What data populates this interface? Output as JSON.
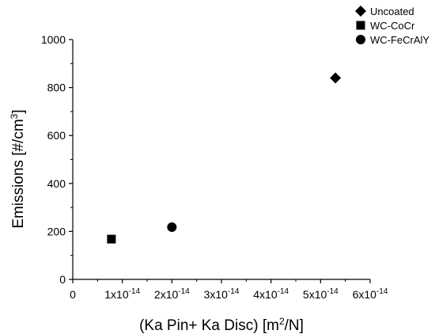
{
  "chart_data": {
    "type": "scatter",
    "xlabel_parts": [
      "(Ka Pin+ Ka Disc) [m",
      "2",
      "/N]"
    ],
    "ylabel_parts": [
      "Emissions [#/cm",
      "3",
      "]"
    ],
    "xlim": [
      0,
      6e-14
    ],
    "ylim": [
      0,
      1000
    ],
    "x_ticks": [
      {
        "value": 0,
        "label": "0"
      },
      {
        "value": 1e-14,
        "mantissa": "1x10",
        "exp": "-14"
      },
      {
        "value": 2e-14,
        "mantissa": "2x10",
        "exp": "-14"
      },
      {
        "value": 3e-14,
        "mantissa": "3x10",
        "exp": "-14"
      },
      {
        "value": 4e-14,
        "mantissa": "4x10",
        "exp": "-14"
      },
      {
        "value": 5e-14,
        "mantissa": "5x10",
        "exp": "-14"
      },
      {
        "value": 6e-14,
        "mantissa": "6x10",
        "exp": "-14"
      }
    ],
    "y_ticks": [
      0,
      200,
      400,
      600,
      800,
      1000
    ],
    "legend_position": "top-right",
    "series": [
      {
        "name": "Uncoated",
        "marker": "diamond",
        "points": [
          {
            "x": 5.3e-14,
            "y": 840
          }
        ]
      },
      {
        "name": "WC-CoCr",
        "marker": "square",
        "points": [
          {
            "x": 7.8e-15,
            "y": 168
          }
        ]
      },
      {
        "name": "WC-FeCrAlY",
        "marker": "circle",
        "points": [
          {
            "x": 2e-14,
            "y": 218
          }
        ]
      }
    ],
    "colors": {
      "marker": "#000000",
      "axis": "#000000"
    }
  }
}
